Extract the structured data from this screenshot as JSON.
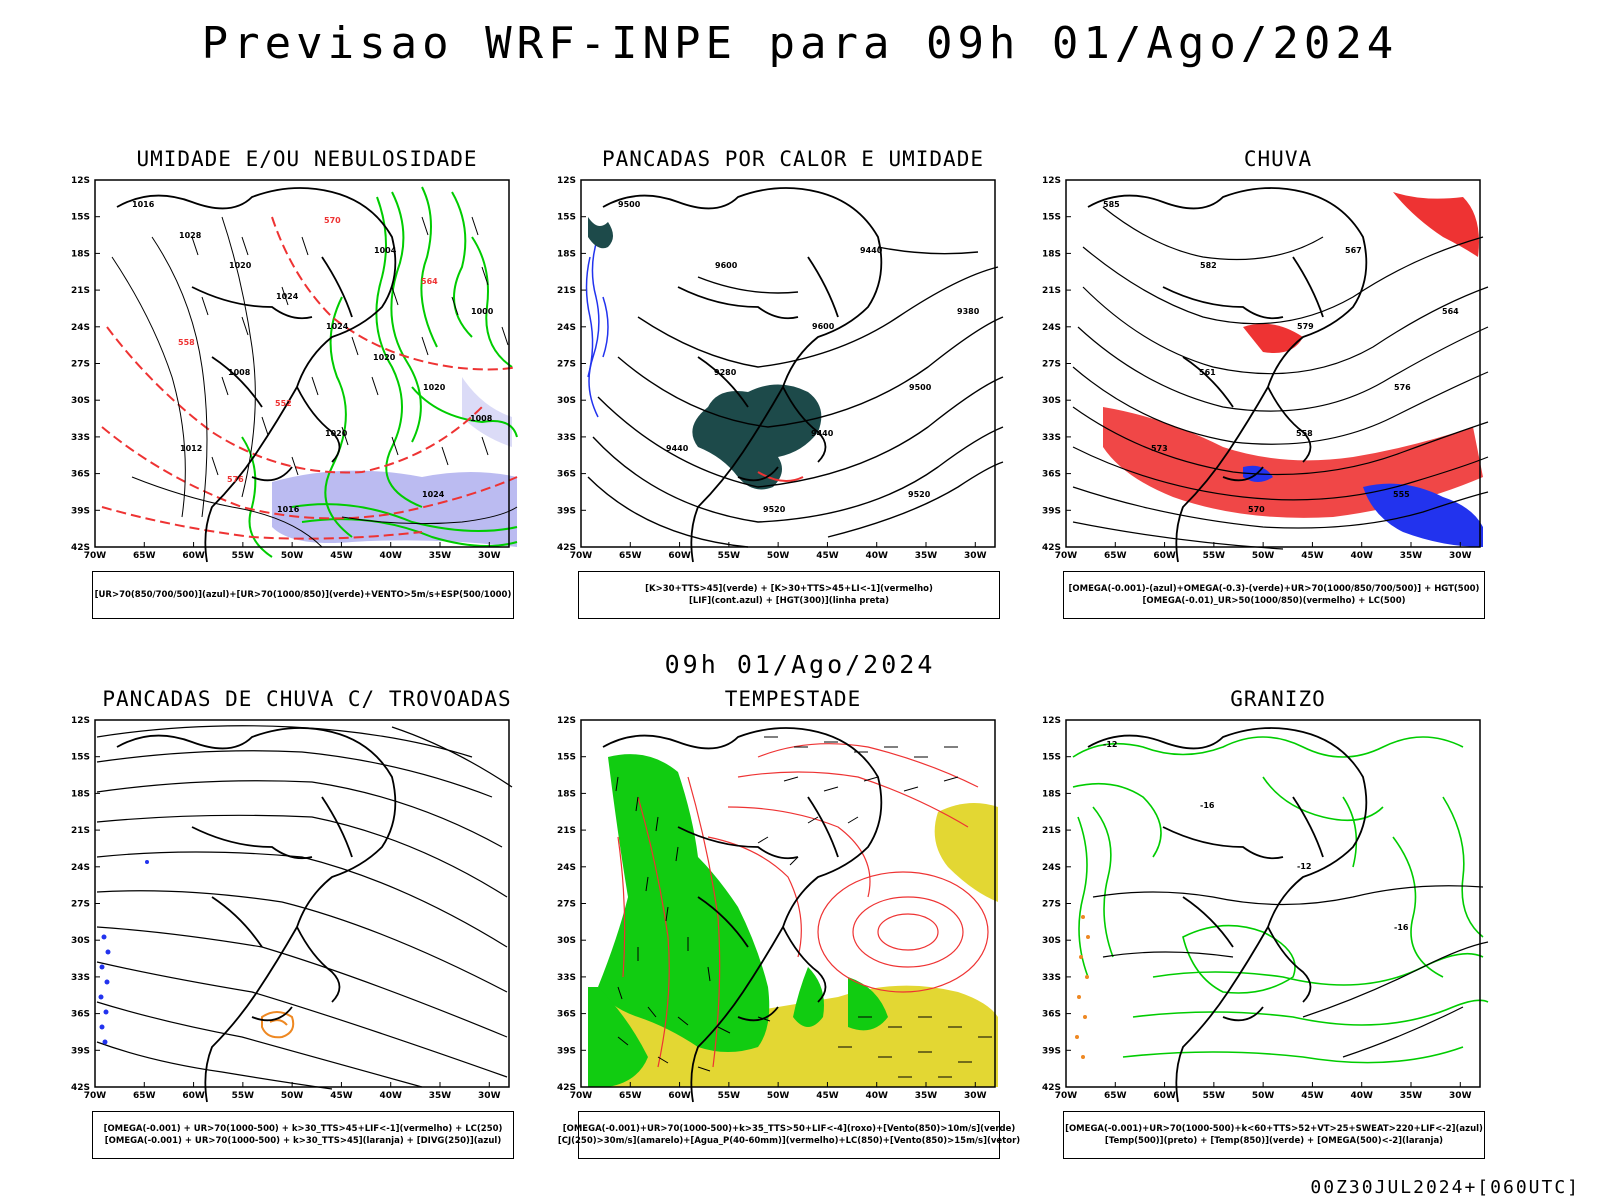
{
  "title": "Previsao WRF-INPE  para 09h 01/Ago/2024",
  "mid_title": "09h 01/Ago/2024",
  "footer": "00Z30JUL2024+[060UTC]",
  "axes": {
    "lat_labels": [
      "12S",
      "15S",
      "18S",
      "21S",
      "24S",
      "27S",
      "30S",
      "33S",
      "36S",
      "39S",
      "42S"
    ],
    "lon_labels": [
      "70W",
      "65W",
      "60W",
      "55W",
      "50W",
      "45W",
      "40W",
      "35W",
      "30W"
    ]
  },
  "colors": {
    "blue": "#2233ee",
    "green": "#00cc00",
    "red": "#ee3333",
    "dark_teal": "#1d4a4a",
    "yellow": "#e3d733",
    "orange": "#ee8822",
    "light_purple": "#aaaaee"
  },
  "panels": [
    {
      "title": "UMIDADE E/OU NEBULOSIDADE",
      "caption": [
        "[UR>70(850/700/500)](azul)+[UR>70(1000/850)](verde)+VENTO>5m/s+ESP(500/1000)"
      ],
      "contour_labels": [
        "1016",
        "1020",
        "1024",
        "1020",
        "1012",
        "1016",
        "1004",
        "1000",
        "1008",
        "1020",
        "1024",
        "1028",
        "1024",
        "1020",
        "1008",
        "576",
        "570",
        "564",
        "558",
        "552"
      ]
    },
    {
      "title": "PANCADAS POR CALOR E UMIDADE",
      "caption": [
        "[K>30+TTS>45](verde)  +  [K>30+TTS>45+LI<-1](vermelho)",
        "[LIF](cont.azul)  +  [HGT(300)](linha preta)"
      ],
      "contour_labels": [
        "9500",
        "9600",
        "9600",
        "9500",
        "9440",
        "9520",
        "9440",
        "9380",
        "9280",
        "9440",
        "9520"
      ]
    },
    {
      "title": "CHUVA",
      "caption": [
        "[OMEGA(-0.001)-(azul)+OMEGA(-0.3)-(verde)+UR>70(1000/850/700/500)]  +  HGT(500)",
        "[OMEGA(-0.01)_UR>50(1000/850)(vermelho)  +  LC(500)"
      ],
      "contour_labels": [
        "585",
        "582",
        "579",
        "576",
        "573",
        "570",
        "567",
        "564",
        "561",
        "558",
        "555"
      ]
    },
    {
      "title": "PANCADAS DE CHUVA C/ TROVOADAS",
      "caption": [
        "[OMEGA(-0.001)  +  UR>70(1000-500)  +  k>30_TTS>45+LIF<-1](vermelho)  +  LC(250)",
        "[OMEGA(-0.001)  +  UR>70(1000-500)  +  k>30_TTS>45](laranja)  +  [DIVG(250)](azul)"
      ],
      "contour_labels": []
    },
    {
      "title": "TEMPESTADE",
      "caption": [
        "[OMEGA(-0.001)+UR>70(1000-500)+k>35_TTS>50+LIF<-4](roxo)+[Vento(850)>10m/s](verde)",
        "[CJ(250)>30m/s](amarelo)+[Agua_P(40-60mm)](vermelho)+LC(850)+[Vento(850)>15m/s](vetor)"
      ],
      "contour_labels": []
    },
    {
      "title": "GRANIZO",
      "caption": [
        "[OMEGA(-0.001)+UR>70(1000-500)+k<60+TTS>52+VT>25+SWEAT>220+LIF<-2](azul)",
        "[Temp(500)](preto)  +  [Temp(850)](verde)  +  [OMEGA(500)<-2](laranja)"
      ],
      "contour_labels": [
        "-12",
        "-16",
        "-12",
        "-16"
      ]
    }
  ]
}
